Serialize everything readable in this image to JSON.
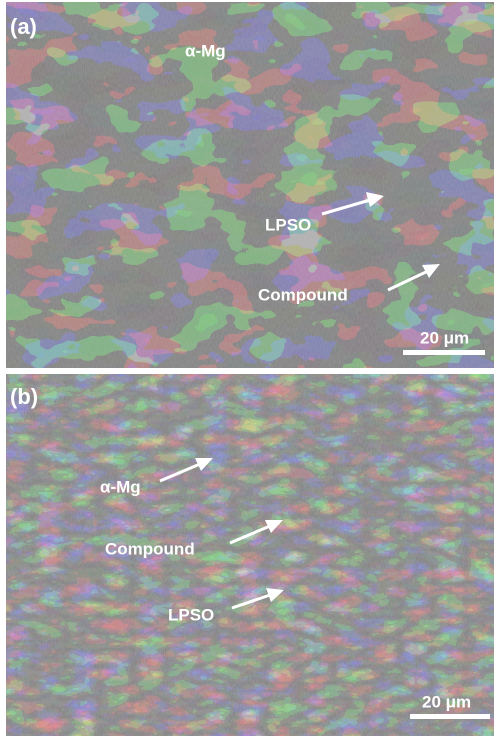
{
  "panels": [
    {
      "label": "(a)",
      "annotations": [
        "α-Mg",
        "LPSO",
        "Compound"
      ],
      "scale_bar": "20 μm"
    },
    {
      "label": "(b)",
      "annotations": [
        "α-Mg",
        "Compound",
        "LPSO"
      ],
      "scale_bar": "20 μm"
    }
  ]
}
